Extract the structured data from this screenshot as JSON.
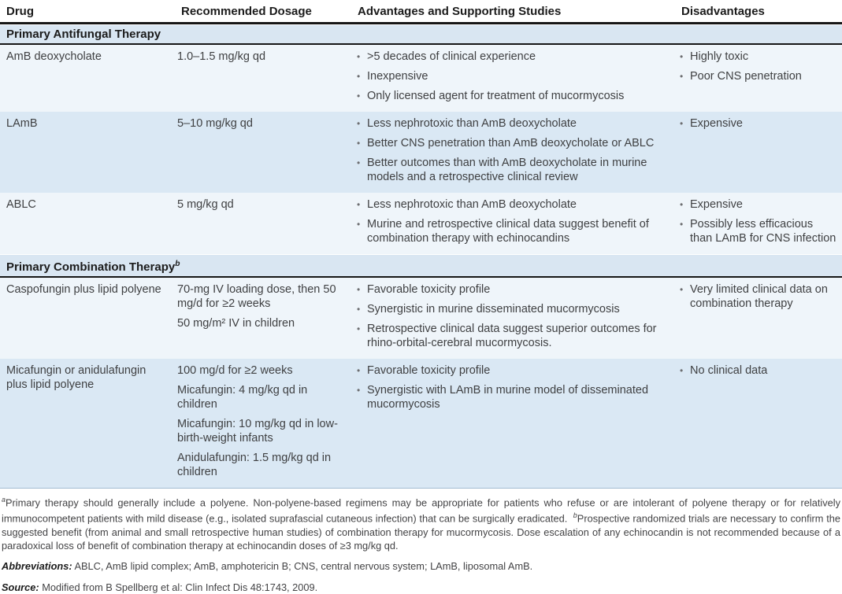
{
  "ui": {
    "bullet": "•"
  },
  "colors": {
    "section_bg": "#d9e6f2",
    "row_light": "#eff5fa",
    "row_blue": "#dae8f4",
    "rule_dark": "#161616",
    "rule_light": "#a2bbd1",
    "text_head": "#1b1b1b",
    "text_body": "#3f4042",
    "text_foot": "#434345",
    "bullet": "#6d6e71"
  },
  "table": {
    "columns": {
      "drug": "Drug",
      "dosage": "Recommended Dosage",
      "advantages": "Advantages and Supporting Studies",
      "disadvantages": "Disadvantages"
    },
    "sections": [
      {
        "title": "Primary Antifungal Therapy",
        "title_sup": "",
        "rows": [
          {
            "drug": "AmB deoxycholate",
            "dosage": [
              "1.0–1.5 mg/kg qd"
            ],
            "advantages": [
              ">5 decades of clinical experience",
              "Inexpensive",
              "Only licensed agent for treatment of mucormycosis"
            ],
            "disadvantages": [
              "Highly toxic",
              "Poor CNS penetration"
            ]
          },
          {
            "drug": "LAmB",
            "dosage": [
              "5–10 mg/kg qd"
            ],
            "advantages": [
              "Less nephrotoxic than AmB deoxycholate",
              "Better CNS penetration than AmB deoxycholate or ABLC",
              "Better outcomes than with AmB deoxycholate in murine models and a retrospective clinical review"
            ],
            "disadvantages": [
              "Expensive"
            ]
          },
          {
            "drug": "ABLC",
            "dosage": [
              "5 mg/kg qd"
            ],
            "advantages": [
              "Less nephrotoxic than AmB deoxycholate",
              "Murine and retrospective clinical data suggest benefit of combination therapy with echinocandins"
            ],
            "disadvantages": [
              "Expensive",
              "Possibly less efficacious than LAmB for CNS infection"
            ]
          }
        ]
      },
      {
        "title": "Primary Combination Therapy",
        "title_sup": "b",
        "rows": [
          {
            "drug": "Caspofungin plus lipid polyene",
            "dosage": [
              "70-mg IV loading dose, then 50 mg/d for ≥2 weeks",
              "50 mg/m² IV in children"
            ],
            "advantages": [
              "Favorable toxicity profile",
              "Synergistic in murine disseminated mucormycosis",
              "Retrospective clinical data suggest superior outcomes for rhino-orbital-cerebral mucormycosis."
            ],
            "disadvantages": [
              "Very limited clinical data on combination therapy"
            ]
          },
          {
            "drug": "Micafungin or anidulafungin plus lipid polyene",
            "dosage": [
              "100 mg/d for ≥2 weeks",
              "Micafungin: 4 mg/kg qd in children",
              "Micafungin: 10 mg/kg qd in low-birth-weight infants",
              "Anidulafungin: 1.5 mg/kg qd in children"
            ],
            "advantages": [
              "Favorable toxicity profile",
              "Synergistic with LAmB in murine model of disseminated mucormycosis"
            ],
            "disadvantages": [
              "No clinical data"
            ]
          }
        ]
      }
    ]
  },
  "footnotes": {
    "note_a_sup": "a",
    "note_a": "Primary therapy should generally include a polyene. Non-polyene-based regimens may be appropriate for patients who refuse or are intolerant of polyene therapy or for relatively immunocompetent patients with mild disease (e.g., isolated suprafascial cutaneous infection) that can be surgically eradicated.  ",
    "note_b_sup": "b",
    "note_b": "Prospective randomized trials are necessary to confirm the suggested benefit (from animal and small retrospective human studies) of combination therapy for mucormycosis. Dose escalation of any echinocandin is not recommended because of a paradoxical loss of benefit of combination therapy at echinocandin doses of ≥3 mg/kg qd.",
    "abbreviations_label": "Abbreviations:",
    "abbreviations_text": "ABLC, AmB lipid complex; AmB, amphotericin B; CNS, central nervous system; LAmB, liposomal AmB.",
    "source_label": "Source:",
    "source_text": "Modified from B Spellberg et al: Clin Infect Dis 48:1743, 2009."
  }
}
